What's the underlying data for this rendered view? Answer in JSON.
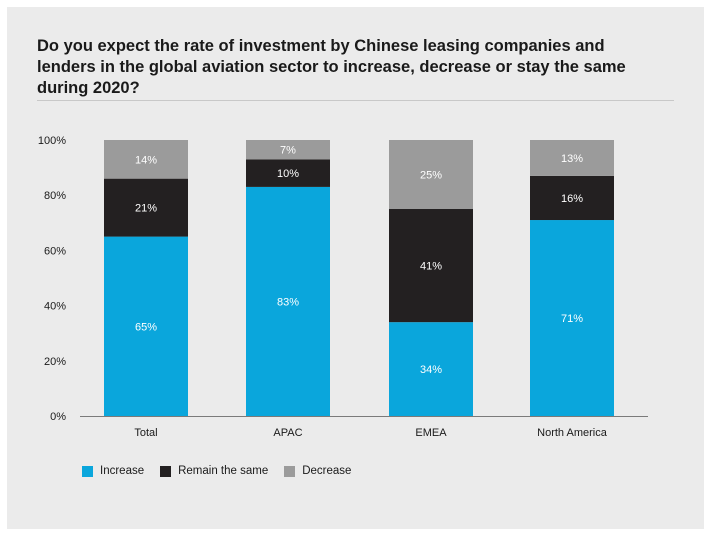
{
  "title": "Do you expect the rate of investment by Chinese leasing companies and lenders in the global aviation sector to increase, decrease or stay the same during 2020?",
  "colors": {
    "increase": "#0aa6dc",
    "remain": "#232021",
    "decrease": "#9b9b9b",
    "background": "#ebebeb"
  },
  "chart_data": {
    "type": "bar",
    "stacked": true,
    "title": "Do you expect the rate of investment by Chinese leasing companies and lenders in the global aviation sector to increase, decrease or stay the same during 2020?",
    "categories": [
      "Total",
      "APAC",
      "EMEA",
      "North America"
    ],
    "series": [
      {
        "name": "Increase",
        "values": [
          65,
          83,
          34,
          71
        ],
        "color": "#0aa6dc"
      },
      {
        "name": "Remain the same",
        "values": [
          21,
          10,
          41,
          16
        ],
        "color": "#232021"
      },
      {
        "name": "Decrease",
        "values": [
          14,
          7,
          25,
          13
        ],
        "color": "#9b9b9b"
      }
    ],
    "data_labels": [
      [
        "65%",
        "83%",
        "34%",
        "71%"
      ],
      [
        "21%",
        "10%",
        "41%",
        "16%"
      ],
      [
        "14%",
        "7%",
        "25%",
        "13%"
      ]
    ],
    "yticks": [
      "0%",
      "20%",
      "40%",
      "60%",
      "80%",
      "100%"
    ],
    "ylim": [
      0,
      100
    ],
    "xlabel": "",
    "ylabel": "",
    "grid": false,
    "legend_position": "bottom-left"
  }
}
